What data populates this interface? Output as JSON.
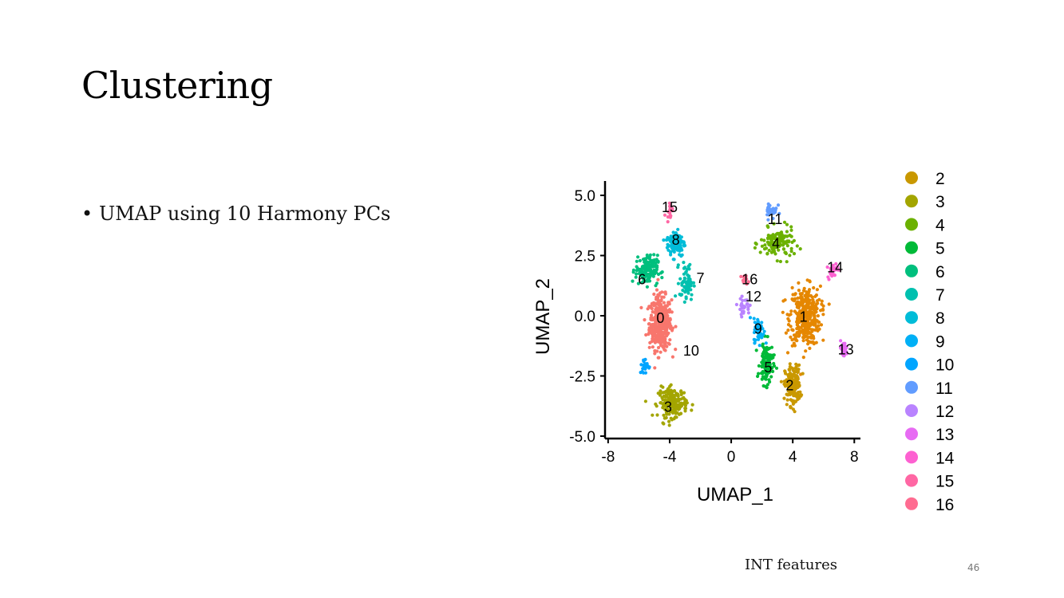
{
  "slide": {
    "title": "Clustering",
    "bullets": [
      "UMAP using 10 Harmony PCs"
    ],
    "footer": "INT features",
    "page_number": "46"
  },
  "chart_data": {
    "type": "scatter",
    "title": "",
    "xlabel": "UMAP_1",
    "ylabel": "UMAP_2",
    "xlim": [
      -8.2,
      8.4
    ],
    "ylim": [
      -5.1,
      5.1
    ],
    "xticks": [
      -8,
      -4,
      0,
      4,
      8
    ],
    "yticks": [
      -5.0,
      -2.5,
      0.0,
      2.5,
      5.0
    ],
    "xtick_labels": [
      "-8",
      "-4",
      "0",
      "4",
      "8"
    ],
    "ytick_labels": [
      "-5.0",
      "-2.5",
      "0.0",
      "2.5",
      "5.0"
    ],
    "legend_position": "right",
    "legend_entries": [
      "2",
      "3",
      "4",
      "5",
      "6",
      "7",
      "8",
      "9",
      "10",
      "11",
      "12",
      "13",
      "14",
      "15",
      "16"
    ],
    "colors": {
      "0": "#F8766D",
      "1": "#E58700",
      "2": "#C99800",
      "3": "#A3A500",
      "4": "#6BB100",
      "5": "#00BA38",
      "6": "#00BF7D",
      "7": "#00C0AF",
      "8": "#00BCD8",
      "9": "#00B0F6",
      "10": "#00A5FF",
      "11": "#619CFF",
      "12": "#B983FF",
      "13": "#E76BF3",
      "14": "#FD61D1",
      "15": "#FF67A4",
      "16": "#FF6C91"
    },
    "clusters": [
      {
        "label": "0",
        "x": -4.6,
        "y": -0.3,
        "sx": 0.65,
        "sy": 1.0,
        "n": 420
      },
      {
        "label": "1",
        "x": 4.8,
        "y": 0.0,
        "sx": 0.9,
        "sy": 1.1,
        "n": 380
      },
      {
        "label": "2",
        "x": 4.0,
        "y": -2.9,
        "sx": 0.45,
        "sy": 0.75,
        "n": 190
      },
      {
        "label": "3",
        "x": -3.8,
        "y": -3.6,
        "sx": 0.85,
        "sy": 0.55,
        "n": 190
      },
      {
        "label": "4",
        "x": 3.0,
        "y": 3.0,
        "sx": 1.0,
        "sy": 0.55,
        "n": 130
      },
      {
        "label": "5",
        "x": 2.3,
        "y": -2.0,
        "sx": 0.4,
        "sy": 0.8,
        "n": 110
      },
      {
        "label": "6",
        "x": -5.5,
        "y": 1.9,
        "sx": 0.65,
        "sy": 0.55,
        "n": 150
      },
      {
        "label": "7",
        "x": -2.9,
        "y": 1.4,
        "sx": 0.4,
        "sy": 0.7,
        "n": 70
      },
      {
        "label": "8",
        "x": -3.6,
        "y": 3.0,
        "sx": 0.55,
        "sy": 0.5,
        "n": 110
      },
      {
        "label": "9",
        "x": 1.8,
        "y": -0.6,
        "sx": 0.3,
        "sy": 0.45,
        "n": 60
      },
      {
        "label": "10",
        "x": -5.6,
        "y": -2.1,
        "sx": 0.3,
        "sy": 0.3,
        "n": 30
      },
      {
        "label": "11",
        "x": 2.6,
        "y": 4.4,
        "sx": 0.35,
        "sy": 0.35,
        "n": 30
      },
      {
        "label": "12",
        "x": 0.8,
        "y": 0.4,
        "sx": 0.35,
        "sy": 0.3,
        "n": 30
      },
      {
        "label": "13",
        "x": 7.3,
        "y": -1.4,
        "sx": 0.25,
        "sy": 0.3,
        "n": 40
      },
      {
        "label": "14",
        "x": 6.6,
        "y": 1.9,
        "sx": 0.3,
        "sy": 0.3,
        "n": 25
      },
      {
        "label": "15",
        "x": -4.0,
        "y": 4.4,
        "sx": 0.2,
        "sy": 0.3,
        "n": 20
      },
      {
        "label": "16",
        "x": 0.9,
        "y": 1.5,
        "sx": 0.2,
        "sy": 0.15,
        "n": 12
      }
    ],
    "cluster_labels": [
      {
        "text": "0",
        "x": -4.6,
        "y": -0.1
      },
      {
        "text": "1",
        "x": 4.7,
        "y": -0.05
      },
      {
        "text": "2",
        "x": 3.8,
        "y": -2.9
      },
      {
        "text": "3",
        "x": -4.1,
        "y": -3.8
      },
      {
        "text": "4",
        "x": 2.9,
        "y": 3.0
      },
      {
        "text": "5",
        "x": 2.4,
        "y": -2.15
      },
      {
        "text": "6",
        "x": -5.8,
        "y": 1.5
      },
      {
        "text": "7",
        "x": -2.0,
        "y": 1.55
      },
      {
        "text": "8",
        "x": -3.6,
        "y": 3.15
      },
      {
        "text": "9",
        "x": 1.75,
        "y": -0.55
      },
      {
        "text": "10",
        "x": -2.6,
        "y": -1.45
      },
      {
        "text": "11",
        "x": 2.85,
        "y": 4.0
      },
      {
        "text": "12",
        "x": 1.45,
        "y": 0.8
      },
      {
        "text": "13",
        "x": 7.45,
        "y": -1.4
      },
      {
        "text": "14",
        "x": 6.75,
        "y": 2.0
      },
      {
        "text": "15",
        "x": -4.0,
        "y": 4.5
      },
      {
        "text": "16",
        "x": 1.2,
        "y": 1.5
      }
    ]
  }
}
